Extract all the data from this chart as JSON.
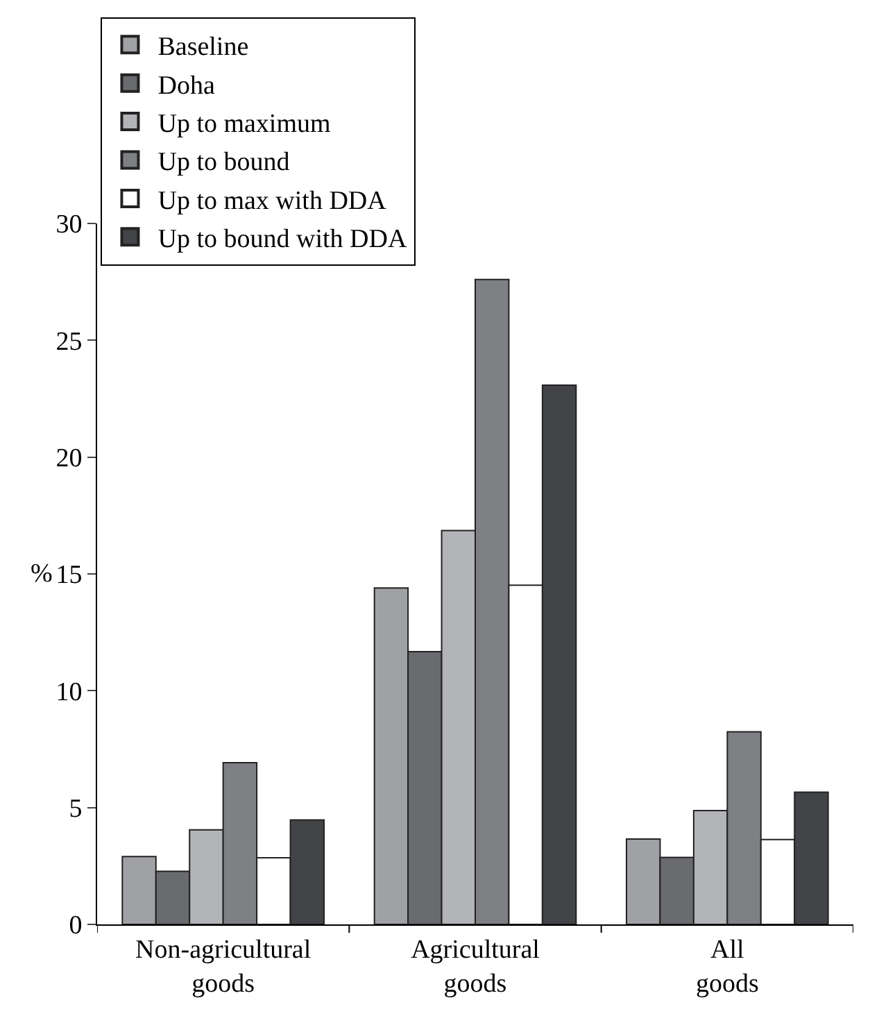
{
  "chart_data": {
    "type": "bar",
    "ylabel": "%",
    "categories": [
      "Non-agricultural goods",
      "Agricultural goods",
      "All goods"
    ],
    "series": [
      {
        "name": "Baseline",
        "color": "#a0a1a5",
        "values": [
          2.9,
          14.4,
          3.65
        ]
      },
      {
        "name": "Doha",
        "color": "#6a6b6f",
        "values": [
          2.27,
          11.67,
          2.87
        ]
      },
      {
        "name": "Up to maximum",
        "color": "#b3b4b8",
        "values": [
          4.05,
          16.86,
          4.87
        ]
      },
      {
        "name": "Up to bound",
        "color": "#7f8084",
        "values": [
          6.92,
          27.6,
          8.24
        ]
      },
      {
        "name": "Up to max with DDA",
        "color": "#ffffff",
        "values": [
          2.85,
          14.52,
          3.63
        ]
      },
      {
        "name": "Up to bound with DDA",
        "color": "#434447",
        "values": [
          4.47,
          23.08,
          5.66
        ]
      }
    ],
    "ylim": [
      0,
      30
    ],
    "yticks": [
      0,
      5,
      10,
      15,
      20,
      25,
      30
    ],
    "legend": "top left"
  }
}
